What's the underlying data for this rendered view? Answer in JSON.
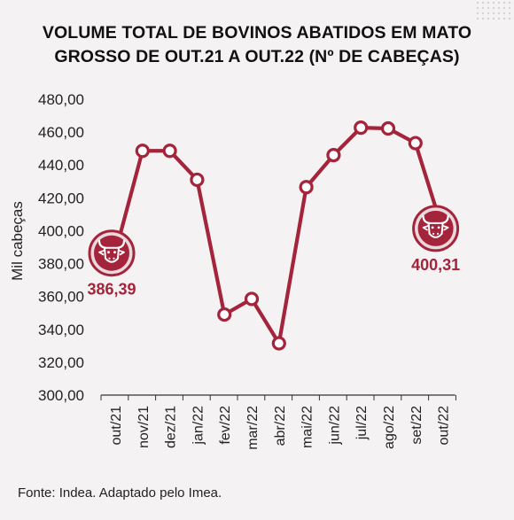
{
  "title": {
    "line1": "VOLUME TOTAL DE BOVINOS ABATIDOS EM MATO",
    "line2": "GROSSO DE OUT.21 A OUT.22 (Nº DE CABEÇAS)"
  },
  "footer": "Fonte: Indea. Adaptado pelo Imea.",
  "colors": {
    "accent": "#a3243b",
    "axis": "#333333",
    "background": "#f4f2f2"
  },
  "icons": {
    "start": "bull-head-icon",
    "end": "bull-head-icon"
  },
  "chart_data": {
    "type": "line",
    "ylabel": "Mil cabeças",
    "ylim": [
      300,
      480
    ],
    "yticks": [
      "300,00",
      "320,00",
      "340,00",
      "360,00",
      "380,00",
      "400,00",
      "420,00",
      "440,00",
      "460,00",
      "480,00"
    ],
    "categories": [
      "out/21",
      "nov/21",
      "dez/21",
      "jan/22",
      "fev/22",
      "mar/22",
      "abr/22",
      "mai/22",
      "jun/22",
      "jul/22",
      "ago/22",
      "set/22",
      "out/22"
    ],
    "values": [
      386.39,
      448.6,
      448.6,
      431.0,
      349.0,
      358.5,
      331.5,
      426.5,
      446.0,
      462.7,
      462.2,
      453.3,
      400.31
    ],
    "labels": {
      "first": "386,39",
      "last": "400,31"
    },
    "grid": false
  }
}
